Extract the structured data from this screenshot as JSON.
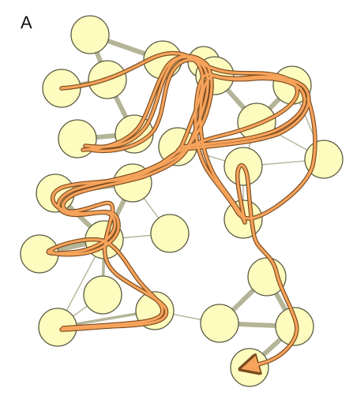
{
  "panel": {
    "label": "A"
  },
  "colors": {
    "node_fill": "#fdfbbd",
    "node_stroke": "#5a5a44",
    "edge": "#b4b497",
    "path_fill": "#f6a35b",
    "path_outline": "#7a4a1e"
  }
}
